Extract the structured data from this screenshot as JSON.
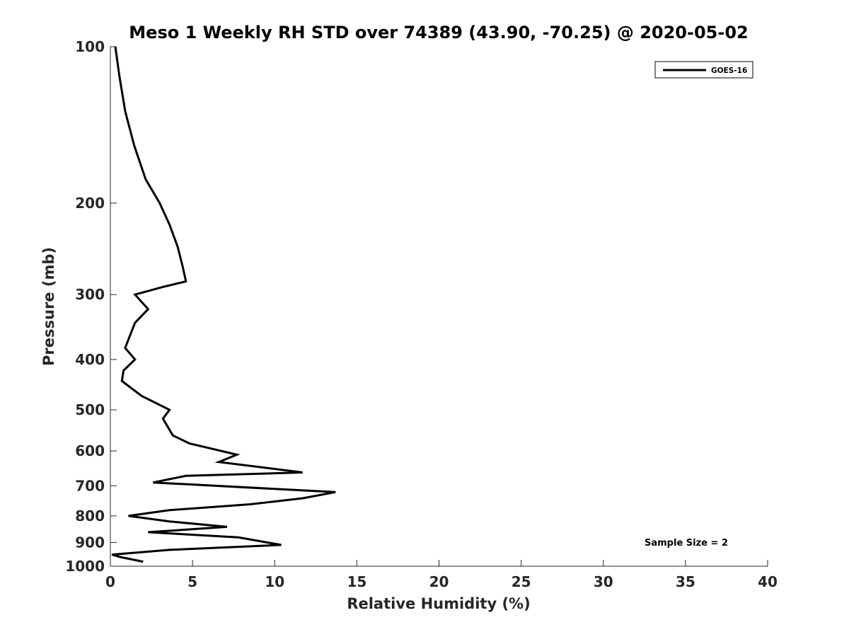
{
  "chart_data": {
    "type": "line",
    "title": "Meso 1 Weekly RH STD over 74389 (43.90, -70.25) @ 2020-05-02",
    "xlabel": "Relative Humidity (%)",
    "ylabel": "Pressure (mb)",
    "xlim": [
      0,
      40
    ],
    "ylim": [
      100,
      1000
    ],
    "y_scale": "log",
    "y_reversed": true,
    "grid": false,
    "x_ticks": [
      "0",
      "5",
      "10",
      "15",
      "20",
      "25",
      "30",
      "35",
      "40"
    ],
    "x_tick_values": [
      0,
      5,
      10,
      15,
      20,
      25,
      30,
      35,
      40
    ],
    "y_ticks": [
      "100",
      "200",
      "300",
      "400",
      "500",
      "600",
      "700",
      "800",
      "900",
      "1000"
    ],
    "y_tick_values": [
      100,
      200,
      300,
      400,
      500,
      600,
      700,
      800,
      900,
      1000
    ],
    "legend_position": "top-right",
    "series": [
      {
        "name": "GOES-16",
        "color": "#000000",
        "x": [
          0.3,
          0.55,
          0.9,
          1.45,
          2.15,
          3.0,
          3.6,
          4.1,
          4.4,
          4.6,
          3.2,
          1.5,
          2.3,
          1.5,
          0.9,
          1.5,
          0.8,
          0.75,
          0.7,
          1.9,
          3.6,
          3.2,
          3.8,
          4.8,
          7.7,
          6.6,
          11.7,
          4.6,
          2.6,
          13.7,
          11.7,
          8.5,
          3.6,
          1.1,
          3.6,
          7.1,
          2.3,
          7.8,
          10.4,
          3.6,
          0.1,
          0.6,
          2.0
        ],
        "y": [
          100,
          114,
          133,
          155,
          180,
          200,
          220,
          243,
          265,
          283,
          290,
          300,
          320,
          340,
          380,
          400,
          420,
          430,
          440,
          470,
          500,
          520,
          560,
          580,
          610,
          630,
          660,
          670,
          690,
          720,
          740,
          760,
          780,
          800,
          820,
          840,
          860,
          880,
          910,
          930,
          950,
          960,
          980
        ]
      }
    ],
    "annotations": [
      "Sample Size = 2"
    ]
  }
}
